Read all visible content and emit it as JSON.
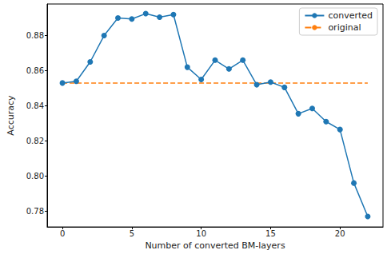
{
  "chart_data": {
    "type": "line",
    "x_label": "Number of converted BM-layers",
    "y_label": "Accuracy",
    "x": [
      0,
      1,
      2,
      3,
      4,
      5,
      6,
      7,
      8,
      9,
      10,
      11,
      12,
      13,
      14,
      15,
      16,
      17,
      18,
      19,
      20,
      21,
      22
    ],
    "series": [
      {
        "name": "converted",
        "color": "#1f77b4",
        "marker": "circle",
        "line_style": "solid",
        "values": [
          0.853,
          0.854,
          0.865,
          0.88,
          0.89,
          0.8895,
          0.8925,
          0.8905,
          0.892,
          0.862,
          0.855,
          0.866,
          0.861,
          0.866,
          0.852,
          0.8535,
          0.8505,
          0.8355,
          0.8385,
          0.831,
          0.8265,
          0.796,
          0.777
        ]
      },
      {
        "name": "original",
        "color": "#ff7f0e",
        "marker": "none",
        "line_style": "dashed",
        "values": [
          0.853,
          0.853,
          0.853,
          0.853,
          0.853,
          0.853,
          0.853,
          0.853,
          0.853,
          0.853,
          0.853,
          0.853,
          0.853,
          0.853,
          0.853,
          0.853,
          0.853,
          0.853,
          0.853,
          0.853,
          0.853,
          0.853,
          0.853
        ]
      }
    ],
    "xlim": [
      -1.1,
      23.1
    ],
    "xticks": [
      0,
      5,
      10,
      15,
      20
    ],
    "ylim": [
      0.771,
      0.898
    ],
    "yticks": [
      0.78,
      {
        "value": 0.8,
        "label": "0.80"
      },
      0.82,
      0.84,
      0.86,
      0.88
    ],
    "grid": false,
    "legend": "upper right"
  }
}
